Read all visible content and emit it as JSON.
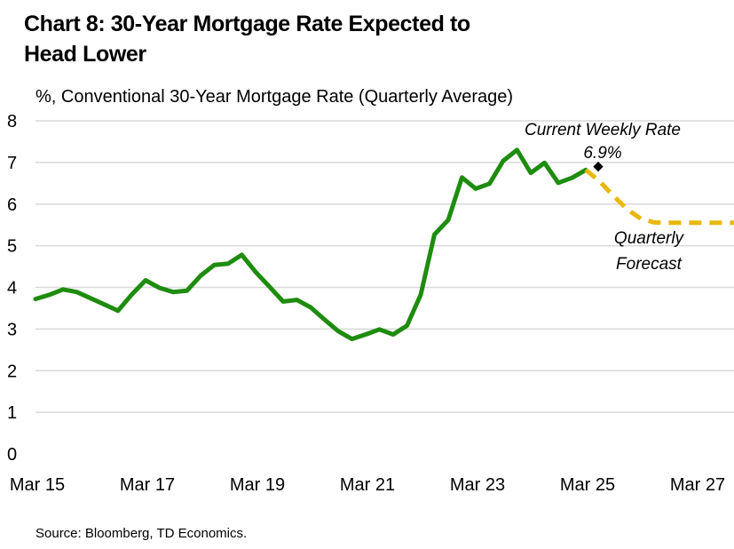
{
  "title_lines": [
    "Chart 8: 30-Year Mortgage Rate Expected to",
    "Head Lower"
  ],
  "source": "Source: Bloomberg, TD Economics.",
  "colors": {
    "actual": "#1e8c0e",
    "forecast": "#e8b80f",
    "marker": "#000000",
    "grid": "#d9d9d9"
  },
  "chart_data": {
    "type": "line",
    "title": "Chart 8: 30-Year Mortgage Rate Expected to Head Lower",
    "ylabel": "%, Conventional 30-Year Mortgage Rate (Quarterly Average)",
    "xlabel": "",
    "ylim": [
      0,
      8
    ],
    "yticks": [
      0,
      1,
      2,
      3,
      4,
      5,
      6,
      7,
      8
    ],
    "xtick_labels": [
      "Mar 15",
      "Mar 17",
      "Mar 19",
      "Mar 21",
      "Mar 23",
      "Mar 25",
      "Mar 27"
    ],
    "grid": true,
    "series": [
      {
        "name": "",
        "style": "solid",
        "x": [
          "Q1 2015",
          "Q2 2015",
          "Q3 2015",
          "Q4 2015",
          "Q1 2016",
          "Q2 2016",
          "Q3 2016",
          "Q4 2016",
          "Q1 2017",
          "Q2 2017",
          "Q3 2017",
          "Q4 2017",
          "Q1 2018",
          "Q2 2018",
          "Q3 2018",
          "Q4 2018",
          "Q1 2019",
          "Q2 2019",
          "Q3 2019",
          "Q4 2019",
          "Q1 2020",
          "Q2 2020",
          "Q3 2020",
          "Q4 2020",
          "Q1 2021",
          "Q2 2021",
          "Q3 2021",
          "Q4 2021",
          "Q1 2022",
          "Q2 2022",
          "Q3 2022",
          "Q4 2022",
          "Q1 2023",
          "Q2 2023",
          "Q3 2023",
          "Q4 2023",
          "Q1 2024",
          "Q2 2024",
          "Q3 2024",
          "Q4 2024",
          "Q1 2025"
        ],
        "values": [
          3.72,
          3.82,
          3.95,
          3.89,
          3.74,
          3.59,
          3.44,
          3.83,
          4.17,
          3.99,
          3.89,
          3.92,
          4.28,
          4.54,
          4.57,
          4.78,
          4.37,
          4.02,
          3.66,
          3.7,
          3.52,
          3.23,
          2.95,
          2.76,
          2.87,
          2.99,
          2.87,
          3.08,
          3.82,
          5.27,
          5.62,
          6.64,
          6.37,
          6.49,
          7.04,
          7.3,
          6.75,
          6.99,
          6.51,
          6.63,
          6.82
        ]
      },
      {
        "name": "Quarterly Forecast",
        "style": "dashed",
        "x": [
          "Q1 2025",
          "Q2 2025",
          "Q3 2025",
          "Q4 2025",
          "Q1 2026",
          "Q2 2026",
          "Q3 2026",
          "Q4 2026",
          "Q1 2027",
          "Q2 2027",
          "Q3 2027",
          "Q4 2027"
        ],
        "values": [
          6.82,
          6.55,
          6.2,
          5.88,
          5.65,
          5.56,
          5.55,
          5.55,
          5.55,
          5.55,
          5.55,
          5.55
        ]
      }
    ],
    "annotations": {
      "current_label": "Current Weekly Rate",
      "current_value_label": "6.9%",
      "current_value": 6.9,
      "current_x": "Q1 2025",
      "forecast_label_lines": [
        "Quarterly",
        "Forecast"
      ]
    }
  }
}
